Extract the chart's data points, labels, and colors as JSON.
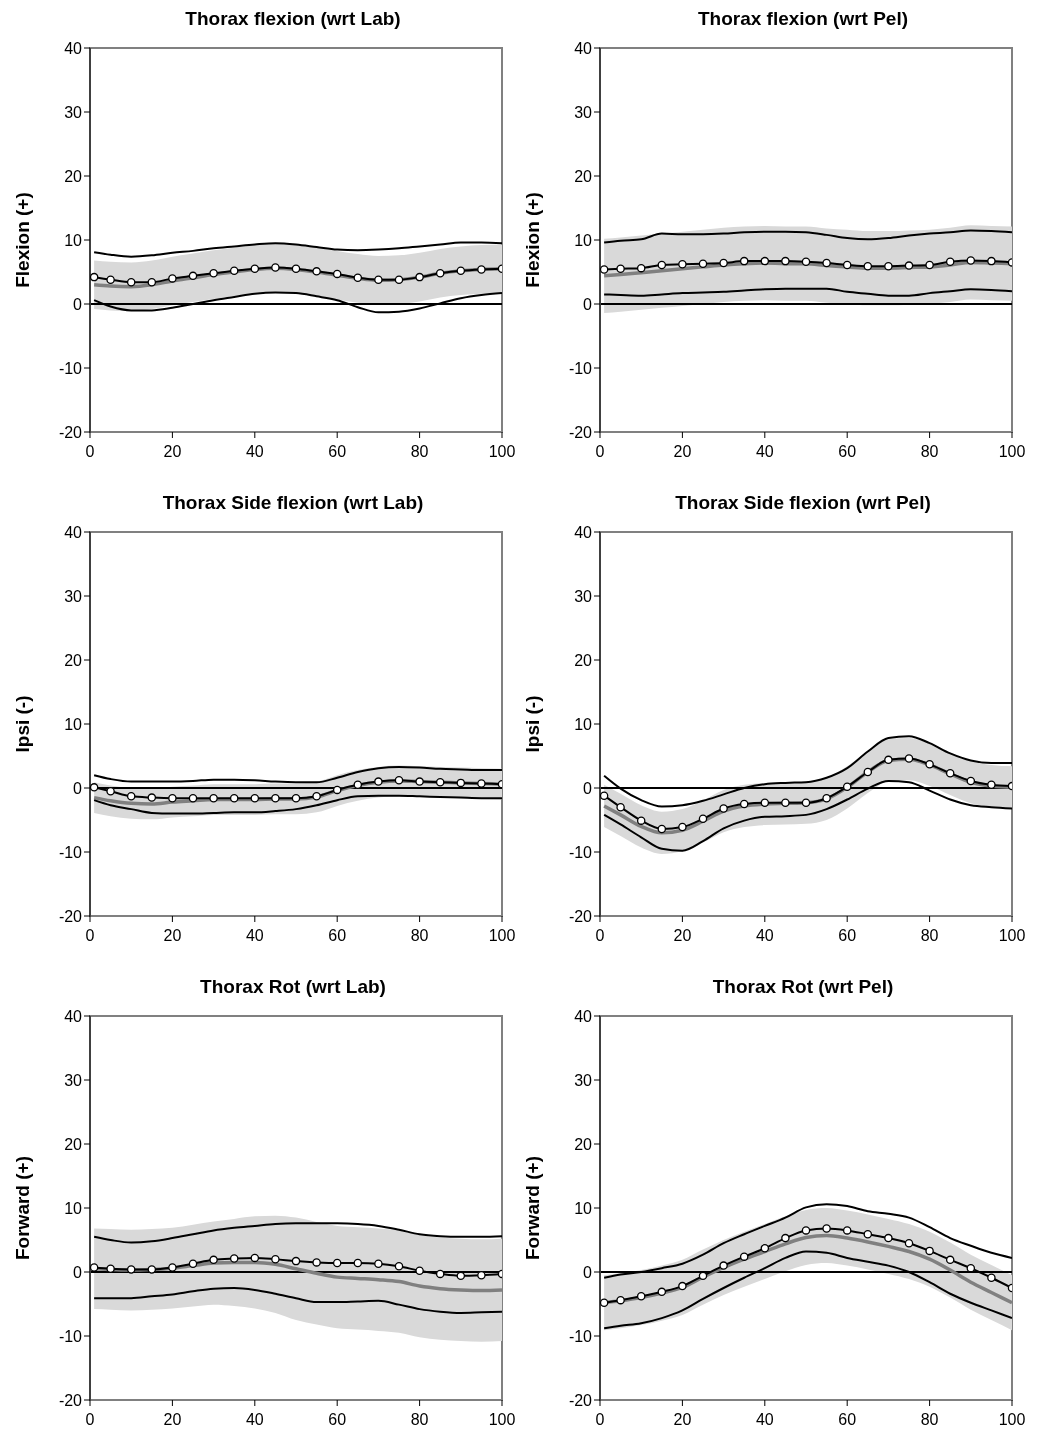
{
  "chart_data": [
    {
      "type": "line",
      "title": "Thorax flexion (wrt Lab)",
      "ylabel": "Flexion (+)",
      "x": [
        1,
        5,
        10,
        15,
        20,
        25,
        30,
        35,
        40,
        45,
        50,
        55,
        60,
        65,
        70,
        75,
        80,
        85,
        90,
        95,
        100
      ],
      "xlim": [
        0,
        100
      ],
      "xticks": [
        0,
        20,
        40,
        60,
        80,
        100
      ],
      "ylim": [
        -20,
        40
      ],
      "yticks": [
        -20,
        -10,
        0,
        10,
        20,
        30,
        40
      ],
      "grid": false,
      "legend": false,
      "ref_lines": [
        {
          "axis": "y",
          "value": 0,
          "color": "#000000"
        }
      ],
      "series": [
        {
          "color": "#808080",
          "marker": "none",
          "values": [
            3.0,
            2.8,
            2.7,
            3.0,
            3.6,
            4.1,
            4.6,
            5.0,
            5.4,
            5.6,
            5.4,
            5.0,
            4.5,
            4.0,
            3.7,
            3.8,
            4.2,
            4.8,
            5.2,
            5.4,
            5.5
          ],
          "lower": [
            -0.8,
            -1.0,
            -1.1,
            -0.8,
            -0.2,
            0.3,
            0.8,
            1.2,
            1.6,
            1.8,
            1.6,
            1.2,
            0.7,
            0.2,
            -0.1,
            0.0,
            0.4,
            1.0,
            1.4,
            1.6,
            1.7
          ],
          "upper": [
            6.8,
            6.6,
            6.5,
            6.8,
            7.4,
            7.9,
            8.4,
            8.8,
            9.2,
            9.4,
            9.2,
            8.8,
            8.3,
            7.8,
            7.5,
            7.6,
            8.0,
            8.6,
            9.0,
            9.2,
            9.3
          ]
        },
        {
          "color": "#000000",
          "marker": "none",
          "values": [
            8.1,
            7.7,
            7.4,
            7.6,
            8.0,
            8.3,
            8.7,
            9.0,
            9.3,
            9.5,
            9.3,
            8.9,
            8.5,
            8.4,
            8.5,
            8.7,
            9.0,
            9.3,
            9.6,
            9.6,
            9.5
          ]
        },
        {
          "color": "#000000",
          "marker": "none",
          "values": [
            0.6,
            -0.4,
            -1.0,
            -1.0,
            -0.6,
            0.0,
            0.6,
            1.1,
            1.6,
            1.8,
            1.7,
            1.2,
            0.6,
            -0.5,
            -1.3,
            -1.2,
            -0.7,
            0.1,
            0.9,
            1.4,
            1.7
          ]
        },
        {
          "color": "#000000",
          "marker": "circle",
          "values": [
            4.2,
            3.8,
            3.4,
            3.4,
            4.0,
            4.4,
            4.8,
            5.2,
            5.5,
            5.7,
            5.5,
            5.1,
            4.7,
            4.1,
            3.8,
            3.8,
            4.2,
            4.8,
            5.2,
            5.4,
            5.5
          ]
        }
      ]
    },
    {
      "type": "line",
      "title": "Thorax flexion (wrt Pel)",
      "ylabel": "Flexion (+)",
      "x": [
        1,
        5,
        10,
        15,
        20,
        25,
        30,
        35,
        40,
        45,
        50,
        55,
        60,
        65,
        70,
        75,
        80,
        85,
        90,
        95,
        100
      ],
      "xlim": [
        0,
        100
      ],
      "xticks": [
        0,
        20,
        40,
        60,
        80,
        100
      ],
      "ylim": [
        -20,
        40
      ],
      "yticks": [
        -20,
        -10,
        0,
        10,
        20,
        30,
        40
      ],
      "grid": false,
      "legend": false,
      "ref_lines": [
        {
          "axis": "y",
          "value": 0,
          "color": "#000000"
        }
      ],
      "series": [
        {
          "color": "#808080",
          "marker": "none",
          "values": [
            4.4,
            4.6,
            4.9,
            5.2,
            5.5,
            5.8,
            6.1,
            6.3,
            6.4,
            6.3,
            6.3,
            6.0,
            5.8,
            5.6,
            5.6,
            5.7,
            5.8,
            6.1,
            6.5,
            6.4,
            6.3
          ],
          "lower": [
            -1.4,
            -1.2,
            -0.9,
            -0.6,
            -0.3,
            0.0,
            0.3,
            0.5,
            0.6,
            0.5,
            0.5,
            0.2,
            0.0,
            -0.2,
            -0.2,
            -0.1,
            0.0,
            0.3,
            0.7,
            0.6,
            0.5
          ],
          "upper": [
            10.2,
            10.4,
            10.7,
            11.0,
            11.3,
            11.6,
            11.9,
            12.1,
            12.2,
            12.1,
            12.1,
            11.8,
            11.6,
            11.4,
            11.4,
            11.5,
            11.6,
            11.9,
            12.3,
            12.2,
            12.1
          ]
        },
        {
          "color": "#000000",
          "marker": "none",
          "values": [
            9.6,
            9.9,
            10.1,
            11.0,
            10.9,
            10.9,
            11.0,
            11.2,
            11.3,
            11.3,
            11.2,
            10.8,
            10.3,
            10.1,
            10.3,
            10.7,
            11.0,
            11.2,
            11.5,
            11.4,
            11.2
          ]
        },
        {
          "color": "#000000",
          "marker": "none",
          "values": [
            1.5,
            1.4,
            1.3,
            1.5,
            1.7,
            1.8,
            1.9,
            2.1,
            2.3,
            2.4,
            2.4,
            2.4,
            1.9,
            1.6,
            1.3,
            1.3,
            1.7,
            2.0,
            2.3,
            2.2,
            2.0
          ]
        },
        {
          "color": "#000000",
          "marker": "circle",
          "values": [
            5.4,
            5.5,
            5.6,
            6.1,
            6.2,
            6.3,
            6.4,
            6.7,
            6.7,
            6.7,
            6.6,
            6.4,
            6.1,
            5.9,
            5.9,
            6.0,
            6.1,
            6.6,
            6.8,
            6.7,
            6.5
          ]
        }
      ]
    },
    {
      "type": "line",
      "title": "Thorax Side flexion (wrt Lab)",
      "ylabel": "Ipsi (-)",
      "x": [
        1,
        5,
        10,
        15,
        20,
        25,
        30,
        35,
        40,
        45,
        50,
        55,
        60,
        65,
        70,
        75,
        80,
        85,
        90,
        95,
        100
      ],
      "xlim": [
        0,
        100
      ],
      "xticks": [
        0,
        20,
        40,
        60,
        80,
        100
      ],
      "ylim": [
        -20,
        40
      ],
      "yticks": [
        -20,
        -10,
        0,
        10,
        20,
        30,
        40
      ],
      "grid": false,
      "legend": false,
      "ref_lines": [
        {
          "axis": "y",
          "value": 0,
          "color": "#000000"
        }
      ],
      "series": [
        {
          "color": "#808080",
          "marker": "none",
          "values": [
            -1.5,
            -2.0,
            -2.4,
            -2.5,
            -2.2,
            -2.0,
            -1.8,
            -1.8,
            -1.8,
            -1.7,
            -1.7,
            -1.4,
            -0.4,
            0.4,
            0.9,
            1.1,
            1.0,
            0.9,
            0.8,
            0.7,
            0.6
          ],
          "lower": [
            -3.9,
            -4.4,
            -4.8,
            -4.9,
            -4.6,
            -4.4,
            -4.2,
            -4.2,
            -4.2,
            -4.1,
            -4.1,
            -3.8,
            -2.8,
            -2.0,
            -1.5,
            -1.3,
            -1.4,
            -1.5,
            -1.6,
            -1.7,
            -1.8
          ],
          "upper": [
            0.9,
            0.4,
            0.0,
            -0.1,
            0.2,
            0.4,
            0.6,
            0.6,
            0.6,
            0.7,
            0.7,
            1.0,
            2.0,
            2.8,
            3.3,
            3.5,
            3.4,
            3.3,
            3.2,
            3.1,
            3.0
          ]
        },
        {
          "color": "#000000",
          "marker": "none",
          "values": [
            2.0,
            1.4,
            1.0,
            1.0,
            1.0,
            1.1,
            1.3,
            1.3,
            1.2,
            1.0,
            0.9,
            0.9,
            1.6,
            2.5,
            3.1,
            3.3,
            3.2,
            3.0,
            2.9,
            2.8,
            2.8
          ]
        },
        {
          "color": "#000000",
          "marker": "none",
          "values": [
            -1.9,
            -2.7,
            -3.3,
            -3.9,
            -4.0,
            -4.0,
            -3.9,
            -3.8,
            -3.8,
            -3.6,
            -3.3,
            -2.7,
            -1.9,
            -1.3,
            -1.2,
            -1.2,
            -1.3,
            -1.4,
            -1.5,
            -1.6,
            -1.6
          ]
        },
        {
          "color": "#000000",
          "marker": "circle",
          "values": [
            0.1,
            -0.5,
            -1.3,
            -1.5,
            -1.6,
            -1.6,
            -1.6,
            -1.6,
            -1.6,
            -1.6,
            -1.6,
            -1.3,
            -0.3,
            0.5,
            1.0,
            1.2,
            1.0,
            0.9,
            0.8,
            0.7,
            0.6
          ]
        }
      ]
    },
    {
      "type": "line",
      "title": "Thorax Side flexion (wrt Pel)",
      "ylabel": "Ipsi (-)",
      "x": [
        1,
        5,
        10,
        15,
        20,
        25,
        30,
        35,
        40,
        45,
        50,
        55,
        60,
        65,
        70,
        75,
        80,
        85,
        90,
        95,
        100
      ],
      "xlim": [
        0,
        100
      ],
      "xticks": [
        0,
        20,
        40,
        60,
        80,
        100
      ],
      "ylim": [
        -20,
        40
      ],
      "yticks": [
        -20,
        -10,
        0,
        10,
        20,
        30,
        40
      ],
      "grid": false,
      "legend": false,
      "ref_lines": [
        {
          "axis": "y",
          "value": 0,
          "color": "#000000"
        }
      ],
      "series": [
        {
          "color": "#808080",
          "marker": "none",
          "values": [
            -2.8,
            -4.2,
            -6.0,
            -7.0,
            -6.6,
            -5.2,
            -3.6,
            -2.8,
            -2.5,
            -2.4,
            -2.3,
            -1.7,
            0.1,
            2.5,
            4.3,
            4.5,
            3.6,
            2.2,
            0.9,
            0.3,
            0.1
          ],
          "lower": [
            -6.1,
            -7.5,
            -9.3,
            -10.3,
            -9.9,
            -8.5,
            -6.9,
            -6.1,
            -5.8,
            -5.7,
            -5.6,
            -5.0,
            -3.2,
            -0.8,
            1.0,
            1.2,
            0.3,
            -1.1,
            -2.4,
            -3.0,
            -3.2
          ],
          "upper": [
            0.5,
            -0.9,
            -2.7,
            -3.7,
            -3.3,
            -1.9,
            -0.3,
            0.5,
            0.8,
            0.9,
            1.0,
            1.6,
            3.4,
            5.8,
            7.6,
            7.8,
            6.9,
            5.5,
            4.2,
            3.6,
            3.4
          ]
        },
        {
          "color": "#000000",
          "marker": "none",
          "values": [
            1.9,
            -0.1,
            -1.9,
            -2.9,
            -2.7,
            -2.0,
            -1.0,
            0.0,
            0.6,
            0.8,
            0.9,
            1.6,
            3.1,
            5.7,
            7.8,
            8.1,
            7.0,
            5.4,
            4.3,
            3.9,
            3.9
          ]
        },
        {
          "color": "#000000",
          "marker": "none",
          "values": [
            -4.2,
            -5.7,
            -7.7,
            -9.5,
            -9.8,
            -8.3,
            -6.3,
            -5.1,
            -4.5,
            -4.4,
            -4.2,
            -3.3,
            -1.8,
            -0.1,
            1.1,
            0.9,
            -0.4,
            -1.8,
            -2.7,
            -3.0,
            -3.2
          ]
        },
        {
          "color": "#000000",
          "marker": "circle",
          "values": [
            -1.2,
            -3.0,
            -5.1,
            -6.4,
            -6.1,
            -4.8,
            -3.2,
            -2.5,
            -2.3,
            -2.3,
            -2.3,
            -1.6,
            0.2,
            2.5,
            4.4,
            4.6,
            3.7,
            2.3,
            1.1,
            0.5,
            0.3
          ]
        }
      ]
    },
    {
      "type": "line",
      "title": "Thorax Rot (wrt Lab)",
      "ylabel": "Forward (+)",
      "x": [
        1,
        5,
        10,
        15,
        20,
        25,
        30,
        35,
        40,
        45,
        50,
        55,
        60,
        65,
        70,
        75,
        80,
        85,
        90,
        95,
        100
      ],
      "xlim": [
        0,
        100
      ],
      "xticks": [
        0,
        20,
        40,
        60,
        80,
        100
      ],
      "ylim": [
        -20,
        40
      ],
      "yticks": [
        -20,
        -10,
        0,
        10,
        20,
        30,
        40
      ],
      "grid": false,
      "legend": false,
      "ref_lines": [
        {
          "axis": "y",
          "value": 0,
          "color": "#000000"
        }
      ],
      "series": [
        {
          "color": "#808080",
          "marker": "none",
          "values": [
            0.5,
            0.4,
            0.3,
            0.4,
            0.6,
            1.0,
            1.4,
            1.5,
            1.5,
            1.2,
            0.5,
            -0.2,
            -0.8,
            -1.0,
            -1.2,
            -1.5,
            -2.2,
            -2.6,
            -2.8,
            -2.9,
            -2.8
          ],
          "lower": [
            -5.8,
            -5.9,
            -6.0,
            -5.9,
            -5.7,
            -5.4,
            -5.1,
            -5.3,
            -5.7,
            -6.4,
            -7.5,
            -8.2,
            -8.8,
            -9.0,
            -9.2,
            -9.5,
            -10.2,
            -10.6,
            -10.8,
            -10.9,
            -10.8
          ],
          "upper": [
            6.8,
            6.7,
            6.6,
            6.7,
            6.9,
            7.4,
            7.9,
            8.3,
            8.7,
            8.8,
            8.5,
            7.8,
            7.2,
            7.0,
            6.8,
            6.5,
            5.8,
            5.4,
            5.2,
            5.1,
            5.2
          ]
        },
        {
          "color": "#000000",
          "marker": "none",
          "values": [
            5.5,
            5.0,
            4.6,
            4.8,
            5.3,
            5.9,
            6.5,
            6.9,
            7.2,
            7.5,
            7.6,
            7.6,
            7.6,
            7.5,
            7.2,
            6.6,
            5.9,
            5.6,
            5.5,
            5.5,
            5.6
          ]
        },
        {
          "color": "#000000",
          "marker": "none",
          "values": [
            -4.1,
            -4.1,
            -4.1,
            -3.8,
            -3.5,
            -3.0,
            -2.6,
            -2.5,
            -2.8,
            -3.4,
            -4.1,
            -4.7,
            -4.7,
            -4.6,
            -4.5,
            -5.1,
            -5.8,
            -6.2,
            -6.4,
            -6.3,
            -6.2
          ]
        },
        {
          "color": "#000000",
          "marker": "circle",
          "values": [
            0.7,
            0.5,
            0.4,
            0.4,
            0.7,
            1.3,
            1.9,
            2.1,
            2.2,
            2.0,
            1.7,
            1.5,
            1.4,
            1.4,
            1.3,
            0.9,
            0.2,
            -0.3,
            -0.6,
            -0.5,
            -0.3
          ]
        }
      ]
    },
    {
      "type": "line",
      "title": "Thorax Rot (wrt Pel)",
      "ylabel": "Forward (+)",
      "x": [
        1,
        5,
        10,
        15,
        20,
        25,
        30,
        35,
        40,
        45,
        50,
        55,
        60,
        65,
        70,
        75,
        80,
        85,
        90,
        95,
        100
      ],
      "xlim": [
        0,
        100
      ],
      "xticks": [
        0,
        20,
        40,
        60,
        80,
        100
      ],
      "ylim": [
        -20,
        40
      ],
      "yticks": [
        -20,
        -10,
        0,
        10,
        20,
        30,
        40
      ],
      "grid": false,
      "legend": false,
      "ref_lines": [
        {
          "axis": "y",
          "value": 0,
          "color": "#000000"
        }
      ],
      "series": [
        {
          "color": "#808080",
          "marker": "none",
          "values": [
            -4.8,
            -4.5,
            -4.0,
            -3.3,
            -2.4,
            -0.8,
            0.7,
            2.0,
            3.2,
            4.4,
            5.4,
            5.7,
            5.3,
            4.7,
            4.0,
            3.2,
            2.0,
            0.3,
            -1.6,
            -3.2,
            -4.8
          ],
          "lower": [
            -9.1,
            -8.8,
            -8.3,
            -7.6,
            -6.7,
            -5.1,
            -3.6,
            -2.3,
            -1.1,
            0.1,
            1.1,
            1.4,
            1.0,
            0.4,
            -0.3,
            -1.1,
            -2.3,
            -4.0,
            -5.9,
            -7.5,
            -9.1
          ],
          "upper": [
            -0.5,
            -0.2,
            0.3,
            1.0,
            1.9,
            3.5,
            5.0,
            6.3,
            7.5,
            8.7,
            9.7,
            10.0,
            9.6,
            9.0,
            8.3,
            7.5,
            6.3,
            4.6,
            2.7,
            1.1,
            -0.5
          ]
        },
        {
          "color": "#000000",
          "marker": "none",
          "values": [
            -0.9,
            -0.4,
            0.0,
            0.6,
            1.3,
            2.7,
            4.5,
            5.9,
            7.2,
            8.5,
            10.1,
            10.6,
            10.3,
            9.5,
            9.1,
            8.5,
            7.0,
            5.3,
            4.1,
            3.0,
            2.2
          ]
        },
        {
          "color": "#000000",
          "marker": "none",
          "values": [
            -8.8,
            -8.4,
            -8.0,
            -7.2,
            -6.0,
            -4.2,
            -2.5,
            -0.9,
            0.6,
            2.2,
            3.2,
            3.0,
            2.2,
            1.6,
            1.0,
            0.0,
            -1.6,
            -3.4,
            -4.8,
            -6.0,
            -7.2
          ]
        },
        {
          "color": "#000000",
          "marker": "circle",
          "values": [
            -4.8,
            -4.4,
            -3.8,
            -3.1,
            -2.2,
            -0.6,
            1.0,
            2.4,
            3.7,
            5.3,
            6.5,
            6.8,
            6.5,
            5.9,
            5.3,
            4.5,
            3.3,
            1.9,
            0.6,
            -0.9,
            -2.5
          ]
        }
      ]
    }
  ]
}
